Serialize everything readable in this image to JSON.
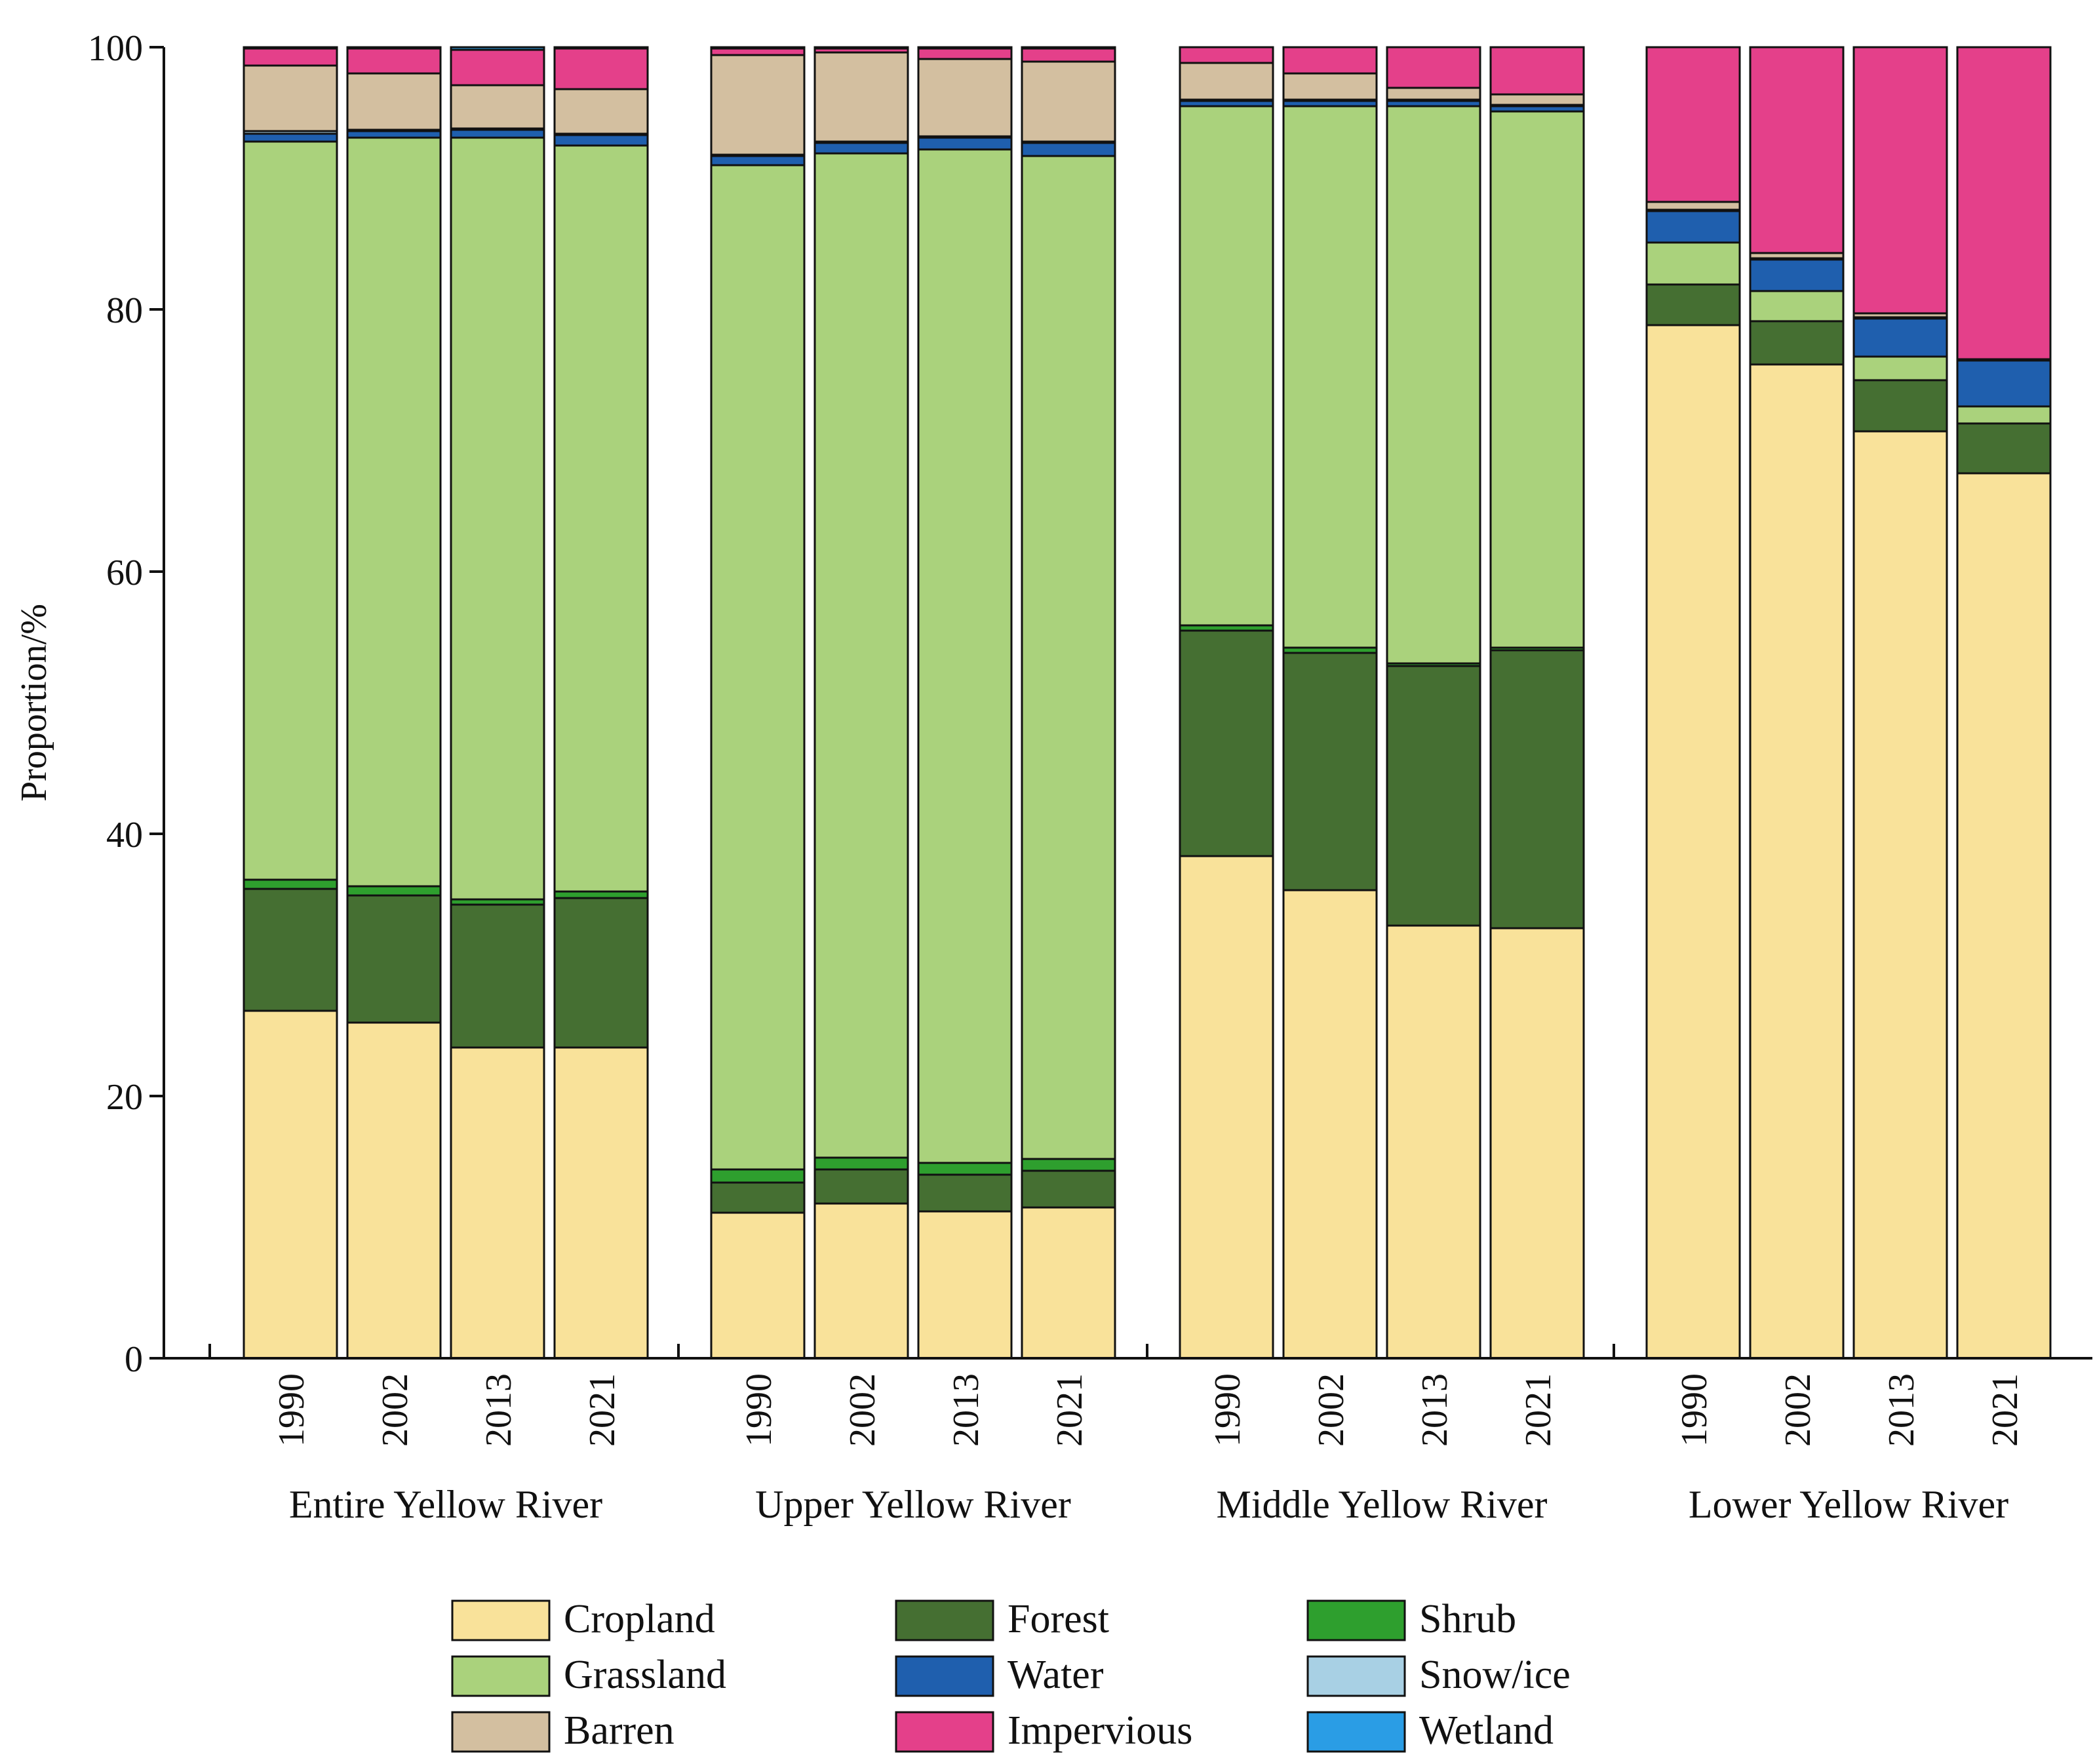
{
  "chart_data": {
    "type": "bar",
    "stacked": true,
    "ylabel": "Proportion/%",
    "ylim": [
      0,
      100
    ],
    "yticks": [
      0,
      20,
      40,
      60,
      80,
      100
    ],
    "grid": false,
    "legend_position": "bottom",
    "categories": [
      "1990",
      "2002",
      "2013",
      "2021"
    ],
    "groups": [
      {
        "label": "Entire Yellow River"
      },
      {
        "label": "Upper Yellow River"
      },
      {
        "label": "Middle Yellow River"
      },
      {
        "label": "Lower Yellow River"
      }
    ],
    "series": [
      {
        "name": "Cropland",
        "color": "#F9E29A",
        "values": [
          [
            26.5,
            25.6,
            23.7,
            23.7
          ],
          [
            11.1,
            11.8,
            11.2,
            11.5
          ],
          [
            38.3,
            35.7,
            33.0,
            32.8
          ],
          [
            78.8,
            75.8,
            70.7,
            67.5
          ]
        ]
      },
      {
        "name": "Forest",
        "color": "#456F32",
        "values": [
          [
            9.3,
            9.7,
            10.9,
            11.4
          ],
          [
            2.3,
            2.6,
            2.8,
            2.8
          ],
          [
            17.2,
            18.1,
            19.8,
            21.2
          ],
          [
            3.1,
            3.3,
            3.9,
            3.8
          ]
        ]
      },
      {
        "name": "Shrub",
        "color": "#2E9F2E",
        "values": [
          [
            0.7,
            0.7,
            0.4,
            0.5
          ],
          [
            1.0,
            0.9,
            0.9,
            0.9
          ],
          [
            0.4,
            0.4,
            0.2,
            0.2
          ],
          [
            0,
            0,
            0,
            0
          ]
        ]
      },
      {
        "name": "Grassland",
        "color": "#AAD27C",
        "values": [
          [
            56.3,
            57.1,
            58.1,
            56.9
          ],
          [
            76.6,
            76.6,
            77.3,
            76.5
          ],
          [
            39.6,
            41.3,
            42.5,
            40.9
          ],
          [
            3.2,
            2.3,
            1.8,
            1.3
          ]
        ]
      },
      {
        "name": "Water",
        "color": "#1F5FAE",
        "values": [
          [
            0.6,
            0.5,
            0.6,
            0.8
          ],
          [
            0.7,
            0.8,
            0.9,
            1.0
          ],
          [
            0.4,
            0.4,
            0.4,
            0.4
          ],
          [
            2.4,
            2.4,
            2.9,
            3.5
          ]
        ]
      },
      {
        "name": "Snow/ice",
        "color": "#A8D0E4",
        "values": [
          [
            0.2,
            0.1,
            0.1,
            0.1
          ],
          [
            0.1,
            0.1,
            0.1,
            0.1
          ],
          [
            0.1,
            0.1,
            0.1,
            0.1
          ],
          [
            0.1,
            0.1,
            0.1,
            0.1
          ]
        ]
      },
      {
        "name": "Barren",
        "color": "#D3BFA0",
        "values": [
          [
            5.0,
            4.3,
            3.3,
            3.4
          ],
          [
            7.6,
            6.8,
            5.9,
            6.1
          ],
          [
            2.8,
            2.0,
            0.9,
            0.8
          ],
          [
            0.6,
            0.4,
            0.3,
            0
          ]
        ]
      },
      {
        "name": "Impervious",
        "color": "#E4408A",
        "values": [
          [
            1.3,
            1.9,
            2.7,
            3.1
          ],
          [
            0.5,
            0.3,
            0.8,
            1.0
          ],
          [
            1.2,
            2.0,
            3.1,
            3.6
          ],
          [
            11.8,
            15.7,
            20.3,
            23.8
          ]
        ]
      },
      {
        "name": "Wetland",
        "color": "#2A9DE5",
        "values": [
          [
            0.1,
            0.1,
            0.2,
            0.1
          ],
          [
            0.1,
            0.1,
            0.1,
            0.1
          ],
          [
            0,
            0,
            0,
            0
          ],
          [
            0,
            0,
            0,
            0
          ]
        ]
      }
    ],
    "legend_order": [
      "Cropland",
      "Forest",
      "Shrub",
      "Grassland",
      "Water",
      "Snow/ice",
      "Barren",
      "Impervious",
      "Wetland"
    ]
  }
}
